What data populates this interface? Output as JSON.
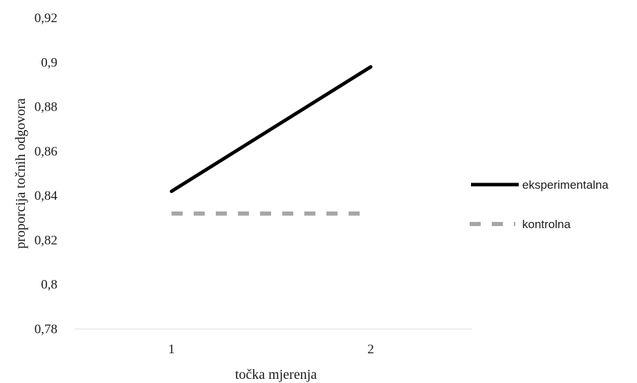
{
  "chart_data": {
    "type": "line",
    "categories": [
      "1",
      "2"
    ],
    "series": [
      {
        "name": "eksperimentalna",
        "values": [
          0.842,
          0.898
        ],
        "color": "#000000",
        "dash": "solid"
      },
      {
        "name": "kontrolna",
        "values": [
          0.832,
          0.832
        ],
        "color": "#a6a6a6",
        "dash": "dashed"
      }
    ],
    "xlabel": "točka mjerenja",
    "ylabel": "proporcija točnih odgovora",
    "ylim": [
      0.78,
      0.92
    ],
    "yticks": [
      "0,78",
      "0,8",
      "0,82",
      "0,84",
      "0,86",
      "0,88",
      "0,9",
      "0,92"
    ],
    "grid": false,
    "legend_position": "right"
  }
}
